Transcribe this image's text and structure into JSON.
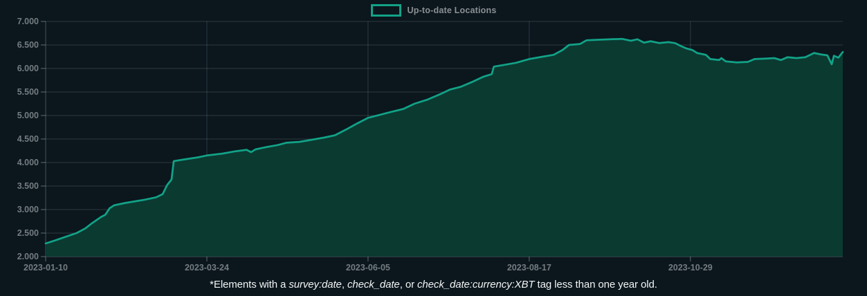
{
  "legend": {
    "label": "Up-to-date Locations"
  },
  "footnote": {
    "segments": [
      {
        "text": "*Elements with a ",
        "italic": false
      },
      {
        "text": "survey:date",
        "italic": true
      },
      {
        "text": ", ",
        "italic": false
      },
      {
        "text": "check_date",
        "italic": true
      },
      {
        "text": ", or ",
        "italic": false
      },
      {
        "text": "check_date:currency:XBT",
        "italic": true
      },
      {
        "text": " tag less than one year old.",
        "italic": false
      }
    ]
  },
  "colors": {
    "background": "#0b161d",
    "line": "#12a287",
    "fill": "#0b3a31",
    "grid": "rgba(170,186,192,0.22)",
    "axis": "rgba(170,186,192,0.38)",
    "tick": "#5f6c72",
    "axis_label": "#747c80",
    "legend_text": "#8b9194",
    "footnote_text": "#f2f5f5"
  },
  "chart_data": {
    "type": "area",
    "title": "",
    "series_name": "Up-to-date Locations",
    "legend_position": "top-center",
    "grid": true,
    "ylim": [
      2000,
      7000
    ],
    "x_range": [
      "2023-01-10",
      "2024-01-06"
    ],
    "y_ticks": [
      {
        "label": "7.000",
        "value": 7000
      },
      {
        "label": "6.500",
        "value": 6500
      },
      {
        "label": "6.000",
        "value": 6000
      },
      {
        "label": "5.500",
        "value": 5500
      },
      {
        "label": "5.000",
        "value": 5000
      },
      {
        "label": "4.500",
        "value": 4500
      },
      {
        "label": "4.000",
        "value": 4000
      },
      {
        "label": "3.500",
        "value": 3500
      },
      {
        "label": "3.000",
        "value": 3000
      },
      {
        "label": "2.500",
        "value": 2500
      },
      {
        "label": "2.000",
        "value": 2000
      }
    ],
    "x_ticks": [
      {
        "label": "2023-01-10",
        "date": "2023-01-10"
      },
      {
        "label": "2023-03-24",
        "date": "2023-03-24"
      },
      {
        "label": "2023-06-05",
        "date": "2023-06-05"
      },
      {
        "label": "2023-08-17",
        "date": "2023-08-17"
      },
      {
        "label": "2023-10-29",
        "date": "2023-10-29"
      }
    ],
    "points": [
      [
        "2023-01-10",
        2280
      ],
      [
        "2023-01-14",
        2340
      ],
      [
        "2023-01-19",
        2420
      ],
      [
        "2023-01-24",
        2500
      ],
      [
        "2023-01-28",
        2600
      ],
      [
        "2023-01-31",
        2710
      ],
      [
        "2023-02-04",
        2840
      ],
      [
        "2023-02-06",
        2890
      ],
      [
        "2023-02-08",
        3030
      ],
      [
        "2023-02-10",
        3090
      ],
      [
        "2023-02-15",
        3140
      ],
      [
        "2023-02-19",
        3170
      ],
      [
        "2023-02-24",
        3210
      ],
      [
        "2023-03-01",
        3260
      ],
      [
        "2023-03-04",
        3330
      ],
      [
        "2023-03-06",
        3520
      ],
      [
        "2023-03-08",
        3640
      ],
      [
        "2023-03-09",
        4030
      ],
      [
        "2023-03-13",
        4060
      ],
      [
        "2023-03-20",
        4110
      ],
      [
        "2023-03-24",
        4150
      ],
      [
        "2023-03-31",
        4190
      ],
      [
        "2023-04-06",
        4240
      ],
      [
        "2023-04-11",
        4270
      ],
      [
        "2023-04-13",
        4220
      ],
      [
        "2023-04-15",
        4280
      ],
      [
        "2023-04-20",
        4330
      ],
      [
        "2023-04-25",
        4370
      ],
      [
        "2023-04-29",
        4420
      ],
      [
        "2023-05-05",
        4440
      ],
      [
        "2023-05-10",
        4480
      ],
      [
        "2023-05-16",
        4530
      ],
      [
        "2023-05-21",
        4580
      ],
      [
        "2023-05-26",
        4700
      ],
      [
        "2023-05-31",
        4830
      ],
      [
        "2023-06-05",
        4950
      ],
      [
        "2023-06-10",
        5010
      ],
      [
        "2023-06-15",
        5070
      ],
      [
        "2023-06-21",
        5140
      ],
      [
        "2023-06-26",
        5250
      ],
      [
        "2023-07-02",
        5340
      ],
      [
        "2023-07-08",
        5460
      ],
      [
        "2023-07-12",
        5550
      ],
      [
        "2023-07-17",
        5610
      ],
      [
        "2023-07-22",
        5710
      ],
      [
        "2023-07-27",
        5820
      ],
      [
        "2023-07-31",
        5880
      ],
      [
        "2023-08-01",
        6040
      ],
      [
        "2023-08-05",
        6070
      ],
      [
        "2023-08-11",
        6120
      ],
      [
        "2023-08-17",
        6200
      ],
      [
        "2023-08-23",
        6250
      ],
      [
        "2023-08-28",
        6290
      ],
      [
        "2023-09-01",
        6390
      ],
      [
        "2023-09-04",
        6500
      ],
      [
        "2023-09-09",
        6520
      ],
      [
        "2023-09-12",
        6600
      ],
      [
        "2023-09-17",
        6610
      ],
      [
        "2023-09-23",
        6620
      ],
      [
        "2023-09-28",
        6630
      ],
      [
        "2023-10-02",
        6590
      ],
      [
        "2023-10-05",
        6620
      ],
      [
        "2023-10-08",
        6550
      ],
      [
        "2023-10-11",
        6580
      ],
      [
        "2023-10-15",
        6540
      ],
      [
        "2023-10-19",
        6560
      ],
      [
        "2023-10-22",
        6540
      ],
      [
        "2023-10-25",
        6470
      ],
      [
        "2023-10-27",
        6430
      ],
      [
        "2023-10-30",
        6390
      ],
      [
        "2023-11-01",
        6330
      ],
      [
        "2023-11-05",
        6290
      ],
      [
        "2023-11-07",
        6200
      ],
      [
        "2023-11-11",
        6180
      ],
      [
        "2023-11-12",
        6220
      ],
      [
        "2023-11-14",
        6150
      ],
      [
        "2023-11-19",
        6130
      ],
      [
        "2023-11-24",
        6140
      ],
      [
        "2023-11-27",
        6200
      ],
      [
        "2023-12-02",
        6210
      ],
      [
        "2023-12-06",
        6220
      ],
      [
        "2023-12-09",
        6180
      ],
      [
        "2023-12-12",
        6240
      ],
      [
        "2023-12-16",
        6220
      ],
      [
        "2023-12-20",
        6240
      ],
      [
        "2023-12-24",
        6330
      ],
      [
        "2023-12-27",
        6300
      ],
      [
        "2023-12-30",
        6280
      ],
      [
        "2024-01-01",
        6090
      ],
      [
        "2024-01-02",
        6270
      ],
      [
        "2024-01-04",
        6230
      ],
      [
        "2024-01-06",
        6350
      ]
    ]
  }
}
